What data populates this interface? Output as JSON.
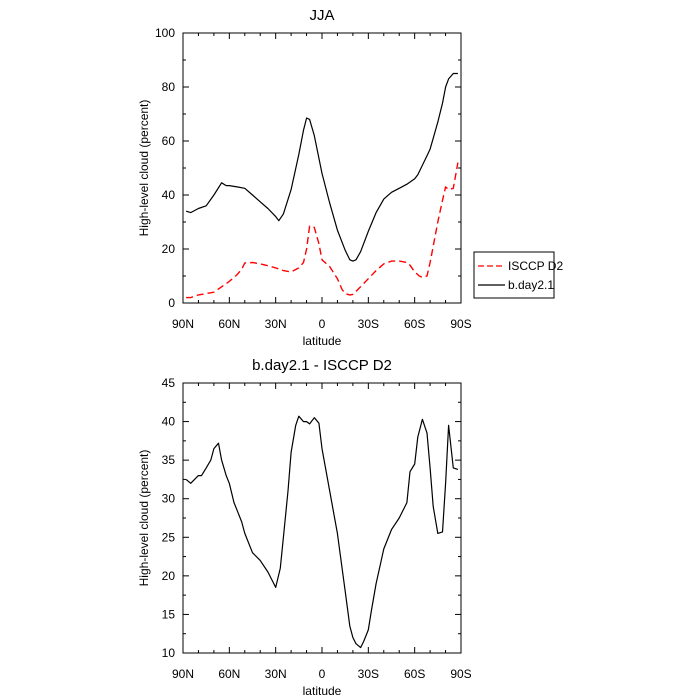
{
  "chart_data": [
    {
      "type": "line",
      "title": "JJA",
      "xlabel": "latitude",
      "ylabel": "High-level cloud (percent)",
      "xlim": [
        -90,
        90
      ],
      "ylim": [
        0,
        100
      ],
      "xticks": [
        -90,
        -60,
        -30,
        0,
        30,
        60,
        90
      ],
      "xtick_labels": [
        "90N",
        "60N",
        "30N",
        "0",
        "30S",
        "60S",
        "90S"
      ],
      "yticks": [
        0,
        20,
        40,
        60,
        80,
        100
      ],
      "ytick_labels": [
        "0",
        "20",
        "40",
        "60",
        "80",
        "100"
      ],
      "grid": false,
      "legend": "right",
      "series": [
        {
          "name": "ISCCP D2",
          "color": "#ff0000",
          "dash": "dashed",
          "x": [
            -88,
            -85,
            -80,
            -75,
            -70,
            -65,
            -60,
            -57,
            -55,
            -52,
            -50,
            -45,
            -40,
            -35,
            -30,
            -25,
            -20,
            -15,
            -12,
            -10,
            -8,
            -5,
            -2,
            0,
            5,
            10,
            13,
            15,
            18,
            20,
            25,
            30,
            35,
            40,
            45,
            50,
            55,
            57,
            60,
            63,
            65,
            68,
            70,
            72,
            75,
            78,
            80,
            82,
            85,
            88
          ],
          "y": [
            2,
            2,
            3,
            3.5,
            4,
            6,
            8,
            9.5,
            10.5,
            12.5,
            14.8,
            15,
            14.5,
            13.8,
            13,
            12,
            11.5,
            13,
            15,
            20,
            28.5,
            28,
            22,
            16,
            13.5,
            9,
            5,
            3.5,
            3,
            3.2,
            6,
            9,
            12,
            14.5,
            15.5,
            15.5,
            15,
            14,
            11.5,
            10,
            9.5,
            10,
            15,
            21,
            30,
            38,
            43,
            42,
            42.5,
            52
          ]
        },
        {
          "name": "b.day2.1",
          "color": "#000000",
          "dash": "solid",
          "x": [
            -88,
            -85,
            -80,
            -75,
            -70,
            -65,
            -62,
            -60,
            -55,
            -50,
            -45,
            -40,
            -35,
            -30,
            -28,
            -25,
            -20,
            -15,
            -12,
            -10,
            -8,
            -5,
            0,
            5,
            10,
            15,
            18,
            20,
            22,
            25,
            30,
            35,
            40,
            45,
            50,
            55,
            60,
            62,
            65,
            68,
            70,
            72,
            75,
            78,
            80,
            82,
            85,
            88
          ],
          "y": [
            34,
            33.5,
            35,
            36,
            40,
            44.5,
            43.5,
            43.5,
            43,
            42.5,
            40,
            37.5,
            35,
            32,
            30.5,
            33,
            42,
            55,
            64,
            68.5,
            68,
            62,
            48,
            37,
            27,
            19.5,
            16,
            15.5,
            16,
            19,
            26.5,
            33.5,
            38.5,
            41,
            42.5,
            44,
            46,
            47.5,
            51,
            54.5,
            57,
            61,
            67,
            74,
            80,
            83,
            85,
            85
          ]
        }
      ]
    },
    {
      "type": "line",
      "title": "b.day2.1 - ISCCP D2",
      "xlabel": "latitude",
      "ylabel": "High-level cloud (percent)",
      "xlim": [
        -90,
        90
      ],
      "ylim": [
        10,
        45
      ],
      "xticks": [
        -90,
        -60,
        -30,
        0,
        30,
        60,
        90
      ],
      "xtick_labels": [
        "90N",
        "60N",
        "30N",
        "0",
        "30S",
        "60S",
        "90S"
      ],
      "yticks": [
        10,
        15,
        20,
        25,
        30,
        35,
        40,
        45
      ],
      "ytick_labels": [
        "10",
        "15",
        "20",
        "25",
        "30",
        "35",
        "40",
        "45"
      ],
      "grid": false,
      "series": [
        {
          "color": "#000000",
          "dash": "solid",
          "x": [
            -88,
            -85,
            -80,
            -78,
            -75,
            -72,
            -70,
            -67,
            -65,
            -62,
            -60,
            -57,
            -55,
            -52,
            -50,
            -45,
            -40,
            -35,
            -30,
            -27,
            -25,
            -22,
            -20,
            -17,
            -15,
            -12,
            -10,
            -8,
            -5,
            -2,
            0,
            5,
            10,
            15,
            18,
            20,
            22,
            25,
            27,
            30,
            32,
            35,
            40,
            45,
            50,
            55,
            57,
            60,
            62,
            65,
            68,
            70,
            72,
            75,
            78,
            80,
            82,
            85,
            88
          ],
          "y": [
            32.5,
            32,
            33,
            33,
            34,
            35,
            36.5,
            37.2,
            35,
            33,
            32,
            29.5,
            28.5,
            27,
            25.5,
            23,
            22,
            20.5,
            18.5,
            21,
            25,
            31,
            36,
            39.5,
            40.7,
            40,
            40,
            39.7,
            40.5,
            39.8,
            36.5,
            31,
            25.5,
            18,
            13.5,
            12,
            11.2,
            10.7,
            11.5,
            13,
            15.5,
            19,
            23.5,
            26,
            27.5,
            29.5,
            33.5,
            34.5,
            38,
            40.3,
            38.5,
            34,
            29,
            25.5,
            25.7,
            32,
            39.5,
            34,
            33.8
          ]
        }
      ]
    }
  ]
}
